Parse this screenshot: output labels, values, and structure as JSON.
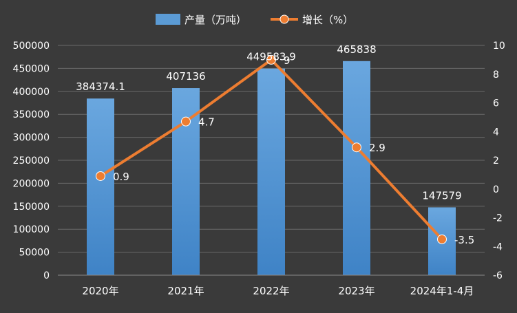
{
  "legend": {
    "bar_label": "产量（万吨）",
    "line_label": "增长（%）"
  },
  "colors": {
    "background": "#3a3a3a",
    "bar": "#5b9bd5",
    "line": "#ed7d31",
    "text": "#ffffff",
    "grid": "#6a6a6a"
  },
  "chart_data": {
    "type": "bar",
    "categories": [
      "2020年",
      "2021年",
      "2022年",
      "2023年",
      "2024年1-4月"
    ],
    "series": [
      {
        "name": "产量（万吨）",
        "type": "bar",
        "axis": "left",
        "values": [
          384374.1,
          407136,
          449583.9,
          465838,
          147579
        ],
        "labels": [
          "384374.1",
          "407136",
          "449583.9",
          "465838",
          "147579"
        ]
      },
      {
        "name": "增长（%）",
        "type": "line",
        "axis": "right",
        "values": [
          0.9,
          4.7,
          9,
          2.9,
          -3.5
        ],
        "labels": [
          "0.9",
          "4.7",
          "9",
          "2.9",
          "-3.5"
        ]
      }
    ],
    "y_left": {
      "ylim": [
        0,
        500000
      ],
      "ticks": [
        0,
        50000,
        100000,
        150000,
        200000,
        250000,
        300000,
        350000,
        400000,
        450000,
        500000
      ],
      "tick_labels": [
        "0",
        "50000",
        "100000",
        "150000",
        "200000",
        "250000",
        "300000",
        "350000",
        "400000",
        "450000",
        "500000"
      ]
    },
    "y_right": {
      "ylim": [
        -6,
        10
      ],
      "ticks": [
        -6,
        -4,
        -2,
        0,
        2,
        4,
        6,
        8,
        10
      ],
      "tick_labels": [
        "-6",
        "-4",
        "-2",
        "0",
        "2",
        "4",
        "6",
        "8",
        "10"
      ]
    },
    "grid": true,
    "legend_position": "top-center"
  }
}
